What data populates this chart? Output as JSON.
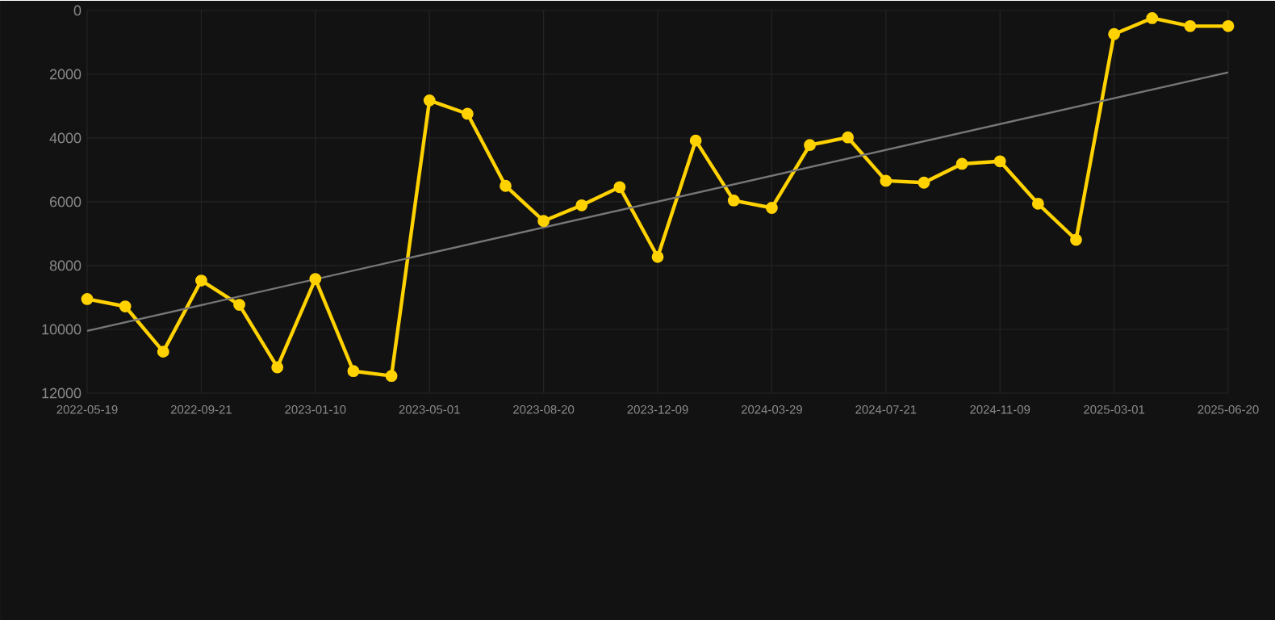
{
  "chart_data": {
    "type": "line",
    "categories": [
      "2022-05-19",
      null,
      null,
      "2022-09-21",
      null,
      null,
      "2023-01-10",
      null,
      null,
      "2023-05-01",
      null,
      null,
      "2023-08-20",
      null,
      null,
      "2023-12-09",
      null,
      null,
      "2024-03-29",
      null,
      null,
      "2024-07-21",
      null,
      null,
      "2024-11-09",
      null,
      null,
      "2025-03-01",
      null,
      null,
      "2025-06-20"
    ],
    "series": [
      {
        "color": "#ffd200",
        "marker": "circle",
        "line_style": "solid",
        "values": [
          9050,
          9280,
          10700,
          8470,
          9230,
          11190,
          8420,
          11310,
          11460,
          2820,
          3240,
          5500,
          6600,
          6110,
          5540,
          7730,
          4080,
          5960,
          6190,
          4220,
          3980,
          5340,
          5400,
          4810,
          4730,
          6060,
          7190,
          740,
          240,
          490,
          490
        ]
      },
      {
        "type": "line",
        "color": "#777777",
        "marker": "none",
        "line_style": "solid",
        "values": [
          10050,
          null,
          null,
          null,
          null,
          null,
          null,
          null,
          null,
          null,
          null,
          null,
          null,
          null,
          null,
          null,
          null,
          null,
          null,
          null,
          null,
          null,
          null,
          null,
          null,
          null,
          null,
          null,
          null,
          null,
          1940
        ]
      }
    ],
    "ylim": [
      12000,
      0
    ],
    "yticks": [
      0,
      2000,
      4000,
      6000,
      8000,
      10000,
      12000
    ],
    "grid": true,
    "legend": false
  }
}
